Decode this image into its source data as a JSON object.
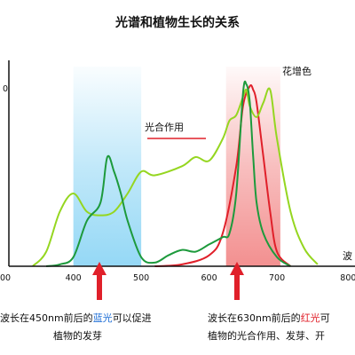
{
  "chart_data": {
    "type": "line",
    "title": "光谱和植物生长的关系",
    "ylabel_fragment": "0",
    "xlabel_fragment": "波",
    "x_ticks": [
      "00",
      "400",
      "500",
      "600",
      "700",
      "800"
    ],
    "xlim": [
      305,
      815
    ],
    "ylim": [
      0,
      1
    ],
    "grid": false,
    "bands": [
      {
        "name": "blue",
        "from": 400,
        "to": 500,
        "color": "#8fd6f5"
      },
      {
        "name": "red",
        "from": 625,
        "to": 705,
        "color": "#f28a8a"
      }
    ],
    "series": [
      {
        "name": "光合作用",
        "color": "#e0202a",
        "x": [
          520,
          560,
          600,
          620,
          640,
          650,
          660,
          665,
          670,
          680,
          690,
          700,
          720
        ],
        "y": [
          0.0,
          0.01,
          0.06,
          0.18,
          0.55,
          0.88,
          0.99,
          0.97,
          0.9,
          0.6,
          0.3,
          0.08,
          0.0
        ]
      },
      {
        "name": "花增色",
        "color": "#95d620",
        "x": [
          340,
          360,
          380,
          400,
          420,
          440,
          460,
          480,
          500,
          520,
          560,
          580,
          600,
          620,
          630,
          640,
          650,
          655,
          660,
          670,
          680,
          690,
          700,
          720,
          740,
          760
        ],
        "y": [
          0.0,
          0.08,
          0.3,
          0.4,
          0.3,
          0.28,
          0.3,
          0.4,
          0.52,
          0.5,
          0.55,
          0.6,
          0.58,
          0.7,
          0.8,
          0.83,
          0.93,
          0.97,
          0.88,
          0.82,
          0.9,
          0.97,
          0.7,
          0.3,
          0.1,
          0.01
        ]
      },
      {
        "name": "",
        "color": "#1d9a3c",
        "x": [
          360,
          380,
          400,
          420,
          440,
          450,
          460,
          470,
          480,
          500,
          520,
          540,
          560,
          580,
          600,
          620,
          630,
          640,
          650,
          655,
          660,
          665,
          670,
          680,
          700,
          720
        ],
        "y": [
          0.0,
          0.01,
          0.05,
          0.25,
          0.35,
          0.6,
          0.52,
          0.4,
          0.25,
          0.05,
          0.02,
          0.06,
          0.09,
          0.08,
          0.12,
          0.16,
          0.18,
          0.4,
          0.95,
          1.0,
          0.9,
          0.6,
          0.35,
          0.18,
          0.05,
          0.0
        ]
      }
    ],
    "annotations": [
      {
        "text": "光合作用",
        "series": "光合作用"
      },
      {
        "text": "花增色",
        "series": "花增色"
      }
    ]
  },
  "captions": {
    "left": {
      "line1_pre": "波长在450nm前后的",
      "line1_hl": "蓝光",
      "line1_post": "可以促进",
      "line2": "植物的发芽"
    },
    "right": {
      "line1_pre": "波长在630nm前后的",
      "line1_hl": "红光",
      "line1_post": "可",
      "line2": "植物的光合作用、发芽、开"
    }
  }
}
